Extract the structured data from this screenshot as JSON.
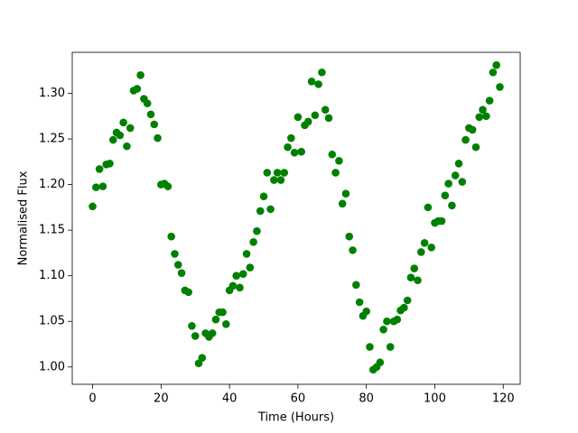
{
  "chart_data": {
    "type": "scatter",
    "x_label": "Time (Hours)",
    "y_label": "Normalised Flux",
    "xlim": [
      -5.95,
      124.95
    ],
    "ylim": [
      0.981,
      1.345
    ],
    "xticks": [
      0,
      20,
      40,
      60,
      80,
      100,
      120
    ],
    "yticks": [
      {
        "value": 1.0,
        "label": "1.00"
      },
      1.05,
      {
        "value": 1.1,
        "label": "1.10"
      },
      1.15,
      {
        "value": 1.2,
        "label": "1.20"
      },
      1.25,
      {
        "value": 1.3,
        "label": "1.30"
      }
    ],
    "series": [
      {
        "color": "#008000",
        "x": [
          0,
          1,
          2,
          3,
          4,
          5,
          6,
          7,
          8,
          9,
          10,
          11,
          12,
          13,
          14,
          15,
          16,
          17,
          18,
          19,
          20,
          21,
          22,
          23,
          24,
          25,
          26,
          27,
          28,
          29,
          30,
          31,
          32,
          33,
          34,
          35,
          36,
          37,
          38,
          39,
          40,
          41,
          42,
          43,
          44,
          45,
          46,
          47,
          48,
          49,
          50,
          51,
          52,
          53,
          54,
          55,
          56,
          57,
          58,
          59,
          60,
          61,
          62,
          63,
          64,
          65,
          66,
          67,
          68,
          69,
          70,
          71,
          72,
          73,
          74,
          75,
          76,
          77,
          78,
          79,
          80,
          81,
          82,
          83,
          84,
          85,
          86,
          87,
          88,
          89,
          90,
          91,
          92,
          93,
          94,
          95,
          96,
          97,
          98,
          99,
          100,
          101,
          102,
          103,
          104,
          105,
          106,
          107,
          108,
          109,
          110,
          111,
          112,
          113,
          114,
          115,
          116,
          117,
          118,
          119
        ],
        "values": [
          1.176,
          1.197,
          1.217,
          1.198,
          1.222,
          1.223,
          1.249,
          1.257,
          1.254,
          1.268,
          1.242,
          1.262,
          1.303,
          1.305,
          1.32,
          1.294,
          1.289,
          1.277,
          1.266,
          1.251,
          1.2,
          1.201,
          1.198,
          1.143,
          1.124,
          1.112,
          1.103,
          1.084,
          1.082,
          1.045,
          1.034,
          1.004,
          1.01,
          1.037,
          1.033,
          1.037,
          1.052,
          1.06,
          1.06,
          1.047,
          1.084,
          1.089,
          1.1,
          1.087,
          1.102,
          1.124,
          1.109,
          1.137,
          1.149,
          1.171,
          1.187,
          1.213,
          1.173,
          1.205,
          1.213,
          1.205,
          1.213,
          1.241,
          1.251,
          1.235,
          1.274,
          1.236,
          1.265,
          1.269,
          1.313,
          1.276,
          1.31,
          1.323,
          1.282,
          1.273,
          1.233,
          1.213,
          1.226,
          1.179,
          1.19,
          1.143,
          1.128,
          1.09,
          1.071,
          1.056,
          1.061,
          1.022,
          0.997,
          1.0,
          1.005,
          1.041,
          1.05,
          1.022,
          1.05,
          1.052,
          1.062,
          1.065,
          1.073,
          1.098,
          1.108,
          1.095,
          1.126,
          1.136,
          1.175,
          1.131,
          1.158,
          1.16,
          1.16,
          1.188,
          1.201,
          1.177,
          1.21,
          1.223,
          1.203,
          1.249,
          1.262,
          1.26,
          1.241,
          1.274,
          1.282,
          1.275,
          1.292,
          1.323,
          1.331,
          1.307
        ]
      }
    ]
  }
}
